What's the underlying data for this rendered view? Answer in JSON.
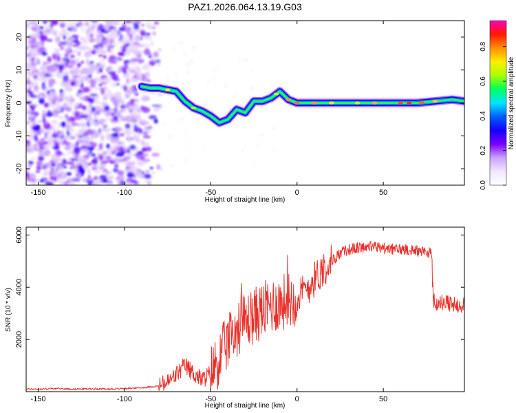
{
  "title": "PAZ1.2026.064.13.19.G03",
  "chart_data": [
    {
      "type": "heatmap",
      "name": "spectrogram",
      "xlabel": "Height of straight line (km)",
      "ylabel": "Frequency (Hz)",
      "xlim": [
        -157,
        97
      ],
      "ylim": [
        -25,
        25
      ],
      "xticks": [
        -150,
        -100,
        -50,
        0,
        50
      ],
      "yticks": [
        -20,
        -10,
        0,
        10,
        20
      ],
      "colorbar": {
        "label": "Normalized spectral amplitude",
        "range": [
          0,
          0.95
        ],
        "ticks": [
          0.0,
          0.2,
          0.4,
          0.6,
          0.8
        ],
        "colors": [
          "#ffffff",
          "#f2e6ff",
          "#c7a3ff",
          "#7a00ff",
          "#1500ff",
          "#0060ff",
          "#00e5ff",
          "#00ff60",
          "#a8ff00",
          "#ffee00",
          "#ff9000",
          "#ff1a00",
          "#ff00c0"
        ]
      },
      "ridge": {
        "x": [
          -90,
          -85,
          -80,
          -75,
          -70,
          -65,
          -60,
          -55,
          -50,
          -45,
          -40,
          -35,
          -30,
          -25,
          -20,
          -15,
          -10,
          -5,
          0,
          10,
          20,
          30,
          40,
          50,
          60,
          70,
          80,
          90,
          97
        ],
        "y": [
          5,
          4.5,
          4.5,
          4,
          3.5,
          0.5,
          -1.5,
          -2.5,
          -4,
          -6,
          -5,
          -2,
          -3,
          0.5,
          0.5,
          1.5,
          3.5,
          1,
          0,
          0,
          0,
          0,
          0,
          0,
          0,
          0,
          0.5,
          1,
          0.5
        ]
      }
    },
    {
      "type": "line",
      "name": "snr",
      "xlabel": "Height of straight line (km)",
      "ylabel": "SNR (10 * v/v)",
      "xlim": [
        -157,
        97
      ],
      "ylim": [
        0,
        6300
      ],
      "xticks": [
        -150,
        -100,
        -50,
        0,
        50
      ],
      "yticks": [
        2000,
        4000,
        6000
      ],
      "color": "#e8302a",
      "series": [
        {
          "name": "SNR",
          "x": [
            -157,
            -150,
            -140,
            -130,
            -120,
            -110,
            -100,
            -90,
            -80,
            -75,
            -70,
            -65,
            -60,
            -55,
            -50,
            -45,
            -40,
            -35,
            -30,
            -25,
            -20,
            -15,
            -10,
            -5,
            0,
            5,
            10,
            15,
            20,
            25,
            30,
            35,
            40,
            45,
            50,
            55,
            60,
            65,
            70,
            75,
            78,
            79,
            85,
            90,
            97
          ],
          "y": [
            100,
            100,
            120,
            100,
            110,
            100,
            120,
            150,
            220,
            350,
            650,
            1000,
            700,
            450,
            700,
            1300,
            1900,
            2400,
            2700,
            2900,
            3100,
            3300,
            3400,
            3500,
            3600,
            3900,
            4300,
            4700,
            5000,
            5300,
            5450,
            5500,
            5550,
            5550,
            5500,
            5450,
            5450,
            5450,
            5400,
            5350,
            5300,
            3400,
            3400,
            3300,
            3400
          ]
        }
      ]
    }
  ]
}
